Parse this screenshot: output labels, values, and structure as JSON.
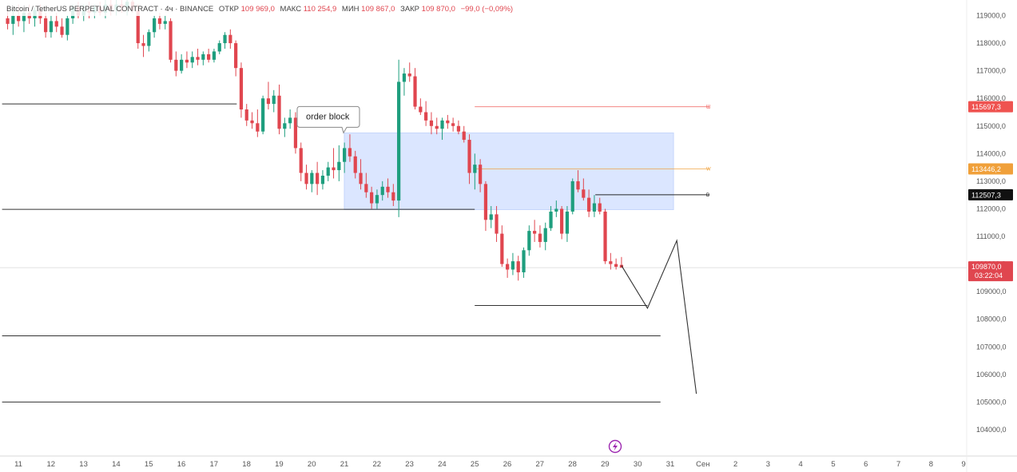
{
  "header": {
    "symbol": "Bitcoin / TetherUS PERPETUAL CONTRACT",
    "timeframe": "4ч",
    "exchange": "BINANCE",
    "open_label": "ОТКР",
    "open_value": "109 969,0",
    "high_label": "МАКС",
    "high_value": "110 254,9",
    "low_label": "МИН",
    "low_value": "109 867,0",
    "close_label": "ЗАКР",
    "close_value": "109 870,0",
    "change": "−99,0 (−0,09%)"
  },
  "chart_data": {
    "type": "candlestick",
    "timeframe": "4h",
    "y_axis": {
      "range": [
        103500,
        119500
      ],
      "ticks": [
        104000,
        105000,
        106000,
        107000,
        108000,
        109000,
        110000,
        111000,
        112000,
        113000,
        114000,
        115000,
        116000,
        117000,
        118000,
        119000
      ],
      "tick_labels": [
        "104000,0",
        "105000,0",
        "106000,0",
        "107000,0",
        "108000,0",
        "109000,0",
        "110000,0",
        "111000,0",
        "112000,0",
        "113000,0",
        "114000,0",
        "115000,0",
        "116000,0",
        "117000,0",
        "118000,0",
        "119000,0"
      ]
    },
    "x_axis": {
      "ticks": [
        "11",
        "12",
        "13",
        "14",
        "15",
        "16",
        "17",
        "18",
        "19",
        "20",
        "21",
        "22",
        "23",
        "24",
        "25",
        "26",
        "27",
        "28",
        "29",
        "30",
        "31",
        "Сен",
        "2",
        "3",
        "4",
        "5",
        "6",
        "7",
        "8",
        "9"
      ],
      "tick_day_index": [
        0,
        1,
        2,
        3,
        4,
        5,
        6,
        7,
        8,
        9,
        10,
        11,
        12,
        13,
        14,
        15,
        16,
        17,
        18,
        19,
        20,
        21,
        22,
        23,
        24,
        25,
        26,
        27,
        28,
        29
      ]
    },
    "candles_per_day": 6,
    "first_candle_day": -0.33,
    "candles": [
      [
        118900,
        119300,
        118500,
        118700
      ],
      [
        118700,
        119200,
        118300,
        119000
      ],
      [
        119000,
        119400,
        118600,
        118800
      ],
      [
        118800,
        119200,
        118400,
        119100
      ],
      [
        119100,
        119400,
        118700,
        118900
      ],
      [
        118900,
        119300,
        118600,
        119200
      ],
      [
        119200,
        119400,
        118700,
        118900
      ],
      [
        118900,
        119100,
        118200,
        118400
      ],
      [
        118400,
        119000,
        118200,
        118800
      ],
      [
        118800,
        119100,
        118400,
        118600
      ],
      [
        118600,
        118900,
        118200,
        118300
      ],
      [
        118300,
        119000,
        118100,
        118900
      ],
      [
        118900,
        119400,
        118700,
        119300
      ],
      [
        119300,
        119500,
        118900,
        119000
      ],
      [
        119000,
        119400,
        118800,
        119200
      ],
      [
        119200,
        119500,
        118900,
        119100
      ],
      [
        119100,
        119400,
        118900,
        119300
      ],
      [
        119300,
        119500,
        119000,
        119100
      ],
      [
        119100,
        119600,
        118900,
        119400
      ],
      [
        119400,
        119700,
        119000,
        119200
      ],
      [
        119200,
        119600,
        119000,
        119400
      ],
      [
        119400,
        119700,
        119100,
        119300
      ],
      [
        119300,
        119600,
        119000,
        119500
      ],
      [
        119500,
        119700,
        119100,
        119200
      ],
      [
        119200,
        119400,
        117800,
        118000
      ],
      [
        118000,
        118300,
        117500,
        117900
      ],
      [
        117900,
        118500,
        117700,
        118400
      ],
      [
        118400,
        119000,
        118200,
        118900
      ],
      [
        118900,
        119100,
        118500,
        118700
      ],
      [
        118700,
        119000,
        118500,
        118800
      ],
      [
        118800,
        118900,
        117300,
        117400
      ],
      [
        117400,
        117700,
        116800,
        117000
      ],
      [
        117000,
        117600,
        116900,
        117400
      ],
      [
        117400,
        117700,
        117100,
        117300
      ],
      [
        117300,
        117700,
        117100,
        117500
      ],
      [
        117500,
        117800,
        117200,
        117400
      ],
      [
        117400,
        117700,
        117200,
        117600
      ],
      [
        117600,
        117800,
        117300,
        117400
      ],
      [
        117400,
        117800,
        117300,
        117700
      ],
      [
        117700,
        118100,
        117600,
        118000
      ],
      [
        118000,
        118400,
        117800,
        118300
      ],
      [
        118300,
        118500,
        117800,
        118000
      ],
      [
        118000,
        118100,
        116800,
        117100
      ],
      [
        117100,
        117300,
        115300,
        115600
      ],
      [
        115600,
        115800,
        115000,
        115200
      ],
      [
        115200,
        115500,
        114900,
        115100
      ],
      [
        115100,
        115600,
        114600,
        114800
      ],
      [
        114800,
        116100,
        114700,
        116000
      ],
      [
        116000,
        116600,
        115600,
        115800
      ],
      [
        115800,
        116300,
        115500,
        116100
      ],
      [
        116100,
        116500,
        114700,
        114900
      ],
      [
        114900,
        115300,
        114600,
        115100
      ],
      [
        115100,
        115600,
        114900,
        115300
      ],
      [
        115300,
        115500,
        114000,
        114200
      ],
      [
        114200,
        114400,
        113000,
        113300
      ],
      [
        113300,
        113600,
        112700,
        112900
      ],
      [
        112900,
        113400,
        112600,
        113300
      ],
      [
        113300,
        113700,
        112500,
        112900
      ],
      [
        112900,
        113400,
        112700,
        113200
      ],
      [
        113200,
        113700,
        113000,
        113500
      ],
      [
        113500,
        114200,
        113100,
        113400
      ],
      [
        113400,
        114300,
        113000,
        113700
      ],
      [
        113700,
        114400,
        113300,
        114200
      ],
      [
        114200,
        114700,
        113700,
        113900
      ],
      [
        113900,
        114100,
        113100,
        113300
      ],
      [
        113300,
        113800,
        112700,
        112900
      ],
      [
        112900,
        113300,
        112400,
        112600
      ],
      [
        112600,
        112800,
        112000,
        112200
      ],
      [
        112200,
        112700,
        112000,
        112500
      ],
      [
        112500,
        113000,
        112300,
        112800
      ],
      [
        112800,
        113100,
        112400,
        112600
      ],
      [
        112600,
        112900,
        112100,
        112300
      ],
      [
        112300,
        117400,
        111700,
        116600
      ],
      [
        116600,
        117100,
        116100,
        116900
      ],
      [
        116900,
        117300,
        116600,
        116800
      ],
      [
        116800,
        117100,
        115600,
        115700
      ],
      [
        115700,
        116000,
        115400,
        115500
      ],
      [
        115500,
        115900,
        115000,
        115200
      ],
      [
        115200,
        115500,
        114700,
        115000
      ],
      [
        115000,
        115300,
        114700,
        114900
      ],
      [
        114900,
        115300,
        114500,
        115200
      ],
      [
        115200,
        115400,
        114900,
        115100
      ],
      [
        115100,
        115300,
        114800,
        115000
      ],
      [
        115000,
        115200,
        114700,
        114800
      ],
      [
        114800,
        115000,
        114400,
        114500
      ],
      [
        114500,
        114700,
        112900,
        113300
      ],
      [
        113300,
        114000,
        112700,
        113600
      ],
      [
        113600,
        113800,
        112600,
        112900
      ],
      [
        112900,
        113000,
        111200,
        111600
      ],
      [
        111600,
        112100,
        111300,
        111800
      ],
      [
        111800,
        112100,
        110800,
        111100
      ],
      [
        111100,
        111400,
        109900,
        110000
      ],
      [
        110000,
        110200,
        109500,
        109800
      ],
      [
        109800,
        110400,
        109600,
        110100
      ],
      [
        110100,
        110300,
        109400,
        109700
      ],
      [
        109700,
        110600,
        109500,
        110500
      ],
      [
        110500,
        111400,
        110300,
        111200
      ],
      [
        111200,
        111600,
        110800,
        111100
      ],
      [
        111100,
        111400,
        110600,
        110800
      ],
      [
        110800,
        111500,
        110500,
        111300
      ],
      [
        111300,
        112100,
        111200,
        111900
      ],
      [
        111900,
        112300,
        111700,
        112000
      ],
      [
        112000,
        112100,
        110900,
        111100
      ],
      [
        111100,
        112100,
        110800,
        111900
      ],
      [
        111900,
        113100,
        111800,
        113000
      ],
      [
        113000,
        113400,
        112600,
        112700
      ],
      [
        112700,
        113100,
        112300,
        112400
      ],
      [
        112400,
        112700,
        111700,
        111900
      ],
      [
        111900,
        112500,
        111700,
        112200
      ],
      [
        112200,
        112400,
        111800,
        111900
      ],
      [
        111900,
        112000,
        110000,
        110100
      ],
      [
        110100,
        110400,
        109800,
        110000
      ],
      [
        110000,
        110200,
        109800,
        109900
      ],
      [
        109969,
        110255,
        109867,
        109870
      ]
    ],
    "zones": [
      {
        "label": "order block",
        "day_start": 10.0,
        "day_end": 20.1,
        "price_low": 111970,
        "price_high": 114750,
        "color": "#dbe6ff"
      }
    ],
    "levels": [
      {
        "price": 115697.3,
        "label": "115697,3",
        "color": "#ef5350",
        "day_start": 14.0,
        "day_end": 21.2,
        "marker": "Ш"
      },
      {
        "price": 113446.2,
        "label": "113446,2",
        "color": "#f0a03a",
        "day_start": 14.0,
        "day_end": 21.2,
        "marker": "W"
      },
      {
        "price": 112507.3,
        "label": "112507,3",
        "color": "#111111",
        "day_start": 17.7,
        "day_end": 21.2,
        "marker": "D"
      }
    ],
    "current_price": {
      "price": 109870.0,
      "label": "109870,0",
      "timer": "03:22:04",
      "color": "#e0464f"
    },
    "hlines": [
      {
        "price": 115800,
        "day_start": -0.5,
        "day_end": 6.7
      },
      {
        "price": 111980,
        "day_start": -0.5,
        "day_end": 14.0
      },
      {
        "price": 108500,
        "day_start": 14.0,
        "day_end": 19.3
      },
      {
        "price": 107400,
        "day_start": -0.5,
        "day_end": 19.7
      },
      {
        "price": 105000,
        "day_start": -0.5,
        "day_end": 19.7
      }
    ],
    "projection": [
      [
        18.5,
        109950
      ],
      [
        19.3,
        108400
      ],
      [
        20.2,
        110850
      ],
      [
        20.8,
        105300
      ]
    ]
  }
}
